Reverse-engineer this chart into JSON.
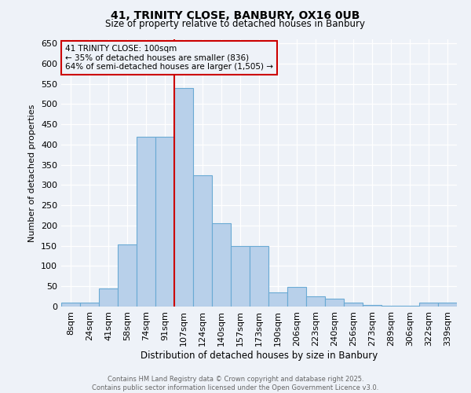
{
  "title1": "41, TRINITY CLOSE, BANBURY, OX16 0UB",
  "title2": "Size of property relative to detached houses in Banbury",
  "xlabel": "Distribution of detached houses by size in Banbury",
  "ylabel": "Number of detached properties",
  "categories": [
    "8sqm",
    "24sqm",
    "41sqm",
    "58sqm",
    "74sqm",
    "91sqm",
    "107sqm",
    "124sqm",
    "140sqm",
    "157sqm",
    "173sqm",
    "190sqm",
    "206sqm",
    "223sqm",
    "240sqm",
    "256sqm",
    "273sqm",
    "289sqm",
    "306sqm",
    "322sqm",
    "339sqm"
  ],
  "values": [
    10,
    10,
    44,
    153,
    420,
    420,
    540,
    325,
    205,
    150,
    150,
    35,
    48,
    25,
    20,
    10,
    3,
    2,
    1,
    10,
    10
  ],
  "bar_color": "#b8d0ea",
  "bar_edge_color": "#6aaad4",
  "vline_x": 5.5,
  "vline_color": "#cc0000",
  "annotation_text": "41 TRINITY CLOSE: 100sqm\n← 35% of detached houses are smaller (836)\n64% of semi-detached houses are larger (1,505) →",
  "annotation_box_color": "#cc0000",
  "ylim": [
    0,
    660
  ],
  "yticks": [
    0,
    50,
    100,
    150,
    200,
    250,
    300,
    350,
    400,
    450,
    500,
    550,
    600,
    650
  ],
  "footnote": "Contains HM Land Registry data © Crown copyright and database right 2025.\nContains public sector information licensed under the Open Government Licence v3.0.",
  "bg_color": "#eef2f8"
}
